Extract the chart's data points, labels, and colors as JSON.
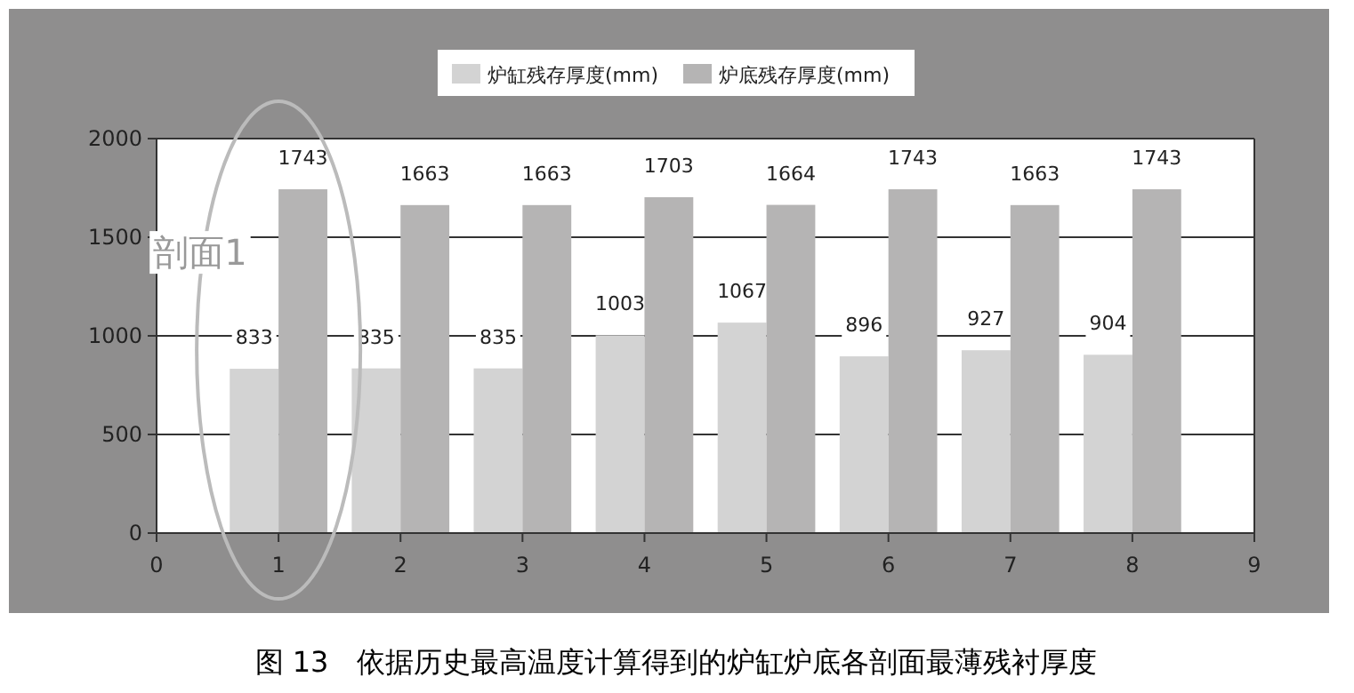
{
  "chart_data": {
    "type": "bar",
    "x": [
      1,
      2,
      3,
      4,
      5,
      6,
      7,
      8
    ],
    "series": [
      {
        "name": "炉缸残存厚度(mm)",
        "color": "#d3d3d3",
        "values": [
          833,
          835,
          835,
          1003,
          1067,
          896,
          927,
          904
        ]
      },
      {
        "name": "炉底残存厚度(mm)",
        "color": "#b5b4b4",
        "values": [
          1743,
          1663,
          1663,
          1703,
          1664,
          1743,
          1663,
          1743
        ]
      }
    ],
    "xlim": [
      0,
      9
    ],
    "xticks": [
      0,
      1,
      2,
      3,
      4,
      5,
      6,
      7,
      8,
      9
    ],
    "ylim": [
      0,
      2000
    ],
    "yticks": [
      0,
      500,
      1000,
      1500,
      2000
    ],
    "grid": "y",
    "legend": "top",
    "data_labels": true,
    "annotations": [
      {
        "text": "剖面1",
        "x": 1,
        "y": 1450
      },
      "图 13　依据历史最高温度计算得到的炉缸炉底各剖面最薄残衬厚度"
    ]
  }
}
